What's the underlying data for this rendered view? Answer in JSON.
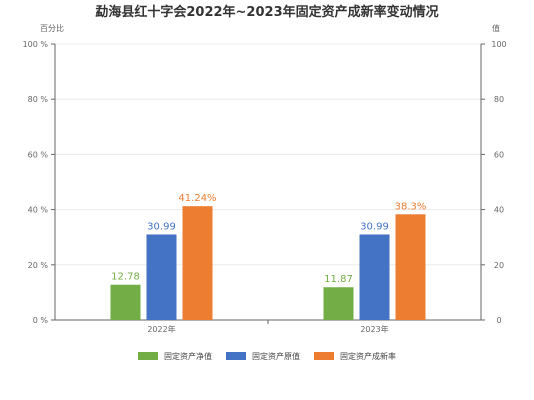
{
  "chart_data": {
    "type": "bar",
    "title": "勐海县红十字会2022年~2023年固定资产成新率变动情况",
    "categories": [
      "2022年",
      "2023年"
    ],
    "left_axis": {
      "name": "百分比",
      "ylim": [
        0,
        100
      ],
      "ticks": [
        {
          "value": 0,
          "label": "0 %"
        },
        {
          "value": 20,
          "label": "20 %"
        },
        {
          "value": 40,
          "label": "40 %"
        },
        {
          "value": 60,
          "label": "60 %"
        },
        {
          "value": 80,
          "label": "80 %"
        },
        {
          "value": 100,
          "label": "100 %"
        }
      ]
    },
    "right_axis": {
      "name": "值",
      "ylim": [
        0,
        100
      ],
      "ticks": [
        {
          "value": 0,
          "label": "0"
        },
        {
          "value": 20,
          "label": "20"
        },
        {
          "value": 40,
          "label": "40"
        },
        {
          "value": 60,
          "label": "60"
        },
        {
          "value": 80,
          "label": "80"
        },
        {
          "value": 100,
          "label": "100"
        }
      ]
    },
    "series": [
      {
        "name": "固定资产净值",
        "color": "#72ad45",
        "axis": "right",
        "values": [
          12.78,
          11.87
        ],
        "labels": [
          "12.78",
          "11.87"
        ]
      },
      {
        "name": "固定资产原值",
        "color": "#4472c4",
        "axis": "right",
        "values": [
          30.99,
          30.99
        ],
        "labels": [
          "30.99",
          "30.99"
        ]
      },
      {
        "name": "固定资产成新率",
        "color": "#ed7d31",
        "axis": "left",
        "values": [
          41.24,
          38.3
        ],
        "labels": [
          "41.24%",
          "38.3%"
        ]
      }
    ],
    "grid": true,
    "legend_position": "bottom"
  }
}
